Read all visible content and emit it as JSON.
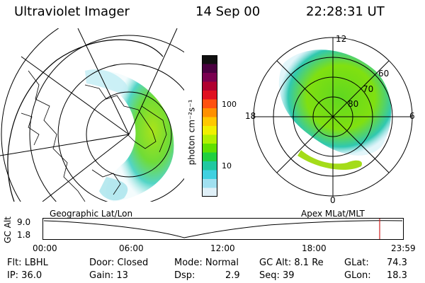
{
  "header": {
    "instrument": "Ultraviolet Imager",
    "date": "14 Sep 00",
    "time": "22:28:31 UT"
  },
  "colorbar": {
    "unit_label": "photon cm⁻²s⁻¹",
    "ticks": [
      "100",
      "10"
    ],
    "colors": [
      "#101010",
      "#4a0040",
      "#7a0050",
      "#b00030",
      "#e01020",
      "#ff5010",
      "#ff9000",
      "#ffc800",
      "#f0f000",
      "#b0f000",
      "#60e000",
      "#20d040",
      "#20c8a0",
      "#40d0e0",
      "#a0e0f0",
      "#e0f0f8"
    ]
  },
  "geographic": {
    "label": "Geographic Lat/Lon"
  },
  "apex": {
    "label": "Apex  MLat/MLT",
    "mlt_labels": {
      "top": "12",
      "left": "18",
      "right": "6",
      "bottom": "0"
    },
    "mlat_labels": [
      "60",
      "70",
      "80"
    ]
  },
  "altitude_plot": {
    "ylabel": "GC Alt",
    "ytick_top": "9.0",
    "ytick_bottom": "1.8",
    "xticks": [
      "00:00",
      "06:00",
      "12:00",
      "18:00",
      "23:59"
    ],
    "marker_color": "#d02020"
  },
  "footer": {
    "row1": {
      "flt": "Flt: LBHL",
      "door": "Door: Closed",
      "mode": "Mode: Normal",
      "gcalt": "GC Alt: 8.1 Re",
      "glat_label": "GLat:",
      "glat_value": "74.3"
    },
    "row2": {
      "ip": "IP: 36.0",
      "gain": "Gain: 13",
      "dsp_label": "Dsp:",
      "dsp_value": "2.9",
      "seq": "Seq: 39",
      "glon_label": "GLon:",
      "glon_value": "18.3"
    }
  }
}
